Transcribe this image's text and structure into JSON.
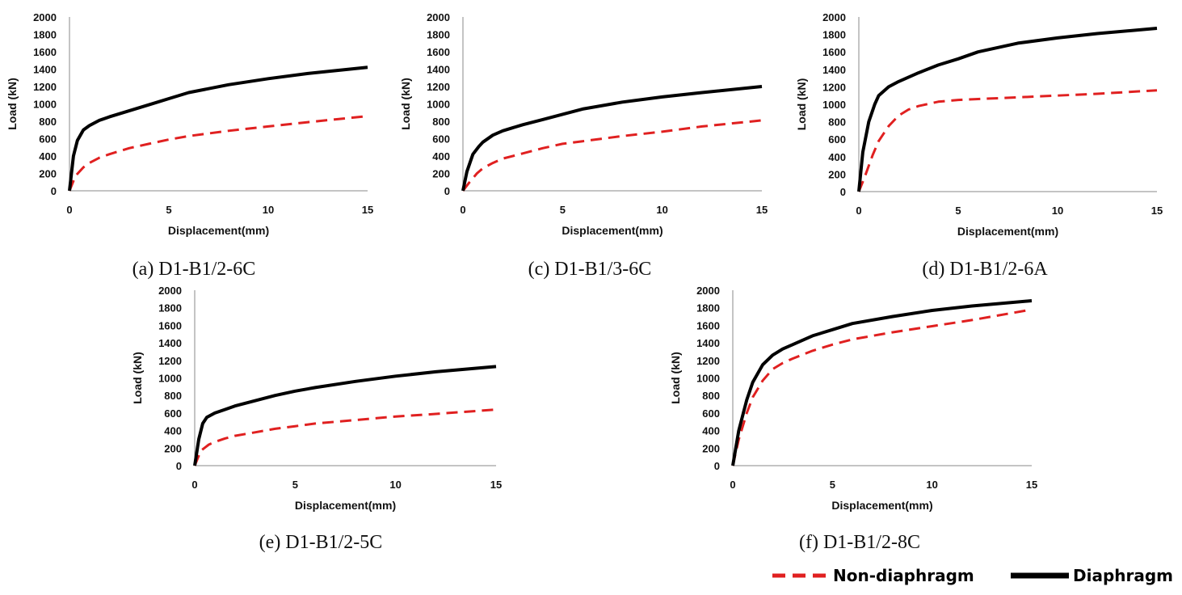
{
  "legend": {
    "non_diaphragm_label": "Non-diaphragm",
    "diaphragm_label": "Diaphragm",
    "position": "bottom-right"
  },
  "colors": {
    "non_diaphragm": "#e02020",
    "diaphragm": "#000000",
    "axis": "#888888"
  },
  "chart_data": [
    {
      "type": "line",
      "caption": "(a)  D1-B1/2-6C",
      "xlabel": "Displacement(mm)",
      "ylabel": "Load (kN)",
      "xlim": [
        0,
        15
      ],
      "ylim": [
        0,
        2000
      ],
      "xticks": [
        0,
        5,
        10,
        15
      ],
      "yticks": [
        0,
        200,
        400,
        600,
        800,
        1000,
        1200,
        1400,
        1600,
        1800,
        2000
      ],
      "grid": false,
      "series": [
        {
          "name": "Diaphragm",
          "x": [
            0,
            0.2,
            0.4,
            0.7,
            1,
            1.5,
            2,
            3,
            4,
            5,
            6,
            8,
            10,
            12,
            15
          ],
          "y": [
            0,
            400,
            580,
            700,
            750,
            810,
            850,
            920,
            990,
            1060,
            1130,
            1220,
            1290,
            1350,
            1420
          ]
        },
        {
          "name": "Non-diaphragm",
          "x": [
            0,
            0.3,
            0.7,
            1,
            1.5,
            2,
            3,
            4,
            5,
            6,
            8,
            10,
            12,
            15
          ],
          "y": [
            0,
            170,
            270,
            320,
            380,
            420,
            490,
            540,
            590,
            630,
            690,
            740,
            790,
            860
          ]
        }
      ]
    },
    {
      "type": "line",
      "caption": "(c)  D1-B1/3-6C",
      "xlabel": "Displacement(mm)",
      "ylabel": "Load (kN)",
      "xlim": [
        0,
        15
      ],
      "ylim": [
        0,
        2000
      ],
      "xticks": [
        0,
        5,
        10,
        15
      ],
      "yticks": [
        0,
        200,
        400,
        600,
        800,
        1000,
        1200,
        1400,
        1600,
        1800,
        2000
      ],
      "grid": false,
      "series": [
        {
          "name": "Diaphragm",
          "x": [
            0,
            0.2,
            0.5,
            0.8,
            1,
            1.5,
            2,
            3,
            4,
            5,
            6,
            8,
            10,
            12,
            15
          ],
          "y": [
            0,
            220,
            420,
            510,
            560,
            640,
            690,
            760,
            820,
            880,
            940,
            1020,
            1080,
            1130,
            1200
          ]
        },
        {
          "name": "Non-diaphragm",
          "x": [
            0,
            0.3,
            0.7,
            1,
            1.5,
            2,
            3,
            4,
            5,
            6,
            8,
            10,
            12,
            15
          ],
          "y": [
            0,
            90,
            200,
            260,
            320,
            370,
            430,
            490,
            540,
            570,
            630,
            680,
            740,
            810
          ]
        }
      ]
    },
    {
      "type": "line",
      "caption": "(d)  D1-B1/2-6A",
      "xlabel": "Displacement(mm)",
      "ylabel": "Load (kN)",
      "xlim": [
        0,
        15
      ],
      "ylim": [
        0,
        2000
      ],
      "xticks": [
        0,
        5,
        10,
        15
      ],
      "yticks": [
        0,
        200,
        400,
        600,
        800,
        1000,
        1200,
        1400,
        1600,
        1800,
        2000
      ],
      "grid": false,
      "series": [
        {
          "name": "Diaphragm",
          "x": [
            0,
            0.2,
            0.5,
            0.8,
            1,
            1.5,
            2,
            3,
            4,
            5,
            6,
            8,
            10,
            12,
            15
          ],
          "y": [
            0,
            450,
            800,
            1000,
            1100,
            1200,
            1260,
            1360,
            1450,
            1520,
            1600,
            1700,
            1760,
            1810,
            1870
          ]
        },
        {
          "name": "Non-diaphragm",
          "x": [
            0,
            0.3,
            0.7,
            1,
            1.5,
            2,
            2.5,
            3,
            4,
            5,
            6,
            8,
            10,
            12,
            15
          ],
          "y": [
            0,
            170,
            420,
            580,
            750,
            870,
            940,
            980,
            1030,
            1050,
            1060,
            1080,
            1100,
            1120,
            1160
          ]
        }
      ]
    },
    {
      "type": "line",
      "caption": "(e)  D1-B1/2-5C",
      "xlabel": "Displacement(mm)",
      "ylabel": "Load (kN)",
      "xlim": [
        0,
        15
      ],
      "ylim": [
        0,
        2000
      ],
      "xticks": [
        0,
        5,
        10,
        15
      ],
      "yticks": [
        0,
        200,
        400,
        600,
        800,
        1000,
        1200,
        1400,
        1600,
        1800,
        2000
      ],
      "grid": false,
      "series": [
        {
          "name": "Diaphragm",
          "x": [
            0,
            0.2,
            0.4,
            0.6,
            1,
            1.5,
            2,
            3,
            4,
            5,
            6,
            8,
            10,
            12,
            15
          ],
          "y": [
            0,
            300,
            480,
            550,
            600,
            640,
            680,
            740,
            800,
            850,
            890,
            960,
            1020,
            1070,
            1130
          ]
        },
        {
          "name": "Non-diaphragm",
          "x": [
            0,
            0.3,
            0.7,
            1,
            1.5,
            2,
            3,
            4,
            5,
            6,
            8,
            10,
            12,
            15
          ],
          "y": [
            0,
            170,
            240,
            270,
            310,
            340,
            380,
            420,
            450,
            480,
            520,
            560,
            590,
            640
          ]
        }
      ]
    },
    {
      "type": "line",
      "caption": "(f)  D1-B1/2-8C",
      "xlabel": "Displacement(mm)",
      "ylabel": "Load (kN)",
      "xlim": [
        0,
        15
      ],
      "ylim": [
        0,
        2000
      ],
      "xticks": [
        0,
        5,
        10,
        15
      ],
      "yticks": [
        0,
        200,
        400,
        600,
        800,
        1000,
        1200,
        1400,
        1600,
        1800,
        2000
      ],
      "grid": false,
      "series": [
        {
          "name": "Diaphragm",
          "x": [
            0,
            0.3,
            0.7,
            1,
            1.5,
            2,
            2.5,
            3,
            4,
            5,
            6,
            8,
            10,
            12,
            15
          ],
          "y": [
            0,
            400,
            750,
            950,
            1150,
            1260,
            1330,
            1380,
            1480,
            1550,
            1620,
            1700,
            1770,
            1820,
            1880
          ]
        },
        {
          "name": "Non-diaphragm",
          "x": [
            0,
            0.3,
            0.7,
            1,
            1.5,
            2,
            2.5,
            3,
            4,
            5,
            6,
            8,
            10,
            12,
            15
          ],
          "y": [
            0,
            300,
            600,
            780,
            970,
            1100,
            1170,
            1220,
            1310,
            1380,
            1440,
            1520,
            1590,
            1660,
            1780
          ]
        }
      ]
    }
  ]
}
